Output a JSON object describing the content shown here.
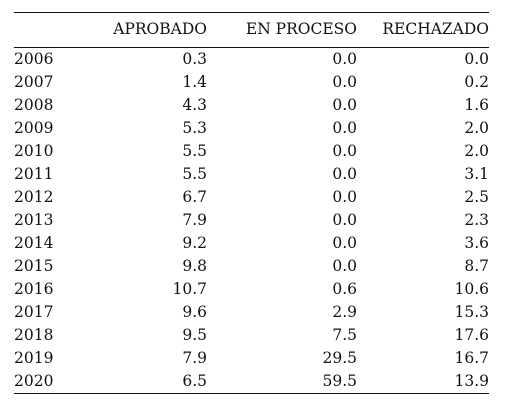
{
  "table": {
    "columns": [
      "",
      "APROBADO",
      "EN PROCESO",
      "RECHAZADO"
    ],
    "rows": [
      {
        "year": "2006",
        "aprobado": "0.3",
        "en_proceso": "0.0",
        "rechazado": "0.0"
      },
      {
        "year": "2007",
        "aprobado": "1.4",
        "en_proceso": "0.0",
        "rechazado": "0.2"
      },
      {
        "year": "2008",
        "aprobado": "4.3",
        "en_proceso": "0.0",
        "rechazado": "1.6"
      },
      {
        "year": "2009",
        "aprobado": "5.3",
        "en_proceso": "0.0",
        "rechazado": "2.0"
      },
      {
        "year": "2010",
        "aprobado": "5.5",
        "en_proceso": "0.0",
        "rechazado": "2.0"
      },
      {
        "year": "2011",
        "aprobado": "5.5",
        "en_proceso": "0.0",
        "rechazado": "3.1"
      },
      {
        "year": "2012",
        "aprobado": "6.7",
        "en_proceso": "0.0",
        "rechazado": "2.5"
      },
      {
        "year": "2013",
        "aprobado": "7.9",
        "en_proceso": "0.0",
        "rechazado": "2.3"
      },
      {
        "year": "2014",
        "aprobado": "9.2",
        "en_proceso": "0.0",
        "rechazado": "3.6"
      },
      {
        "year": "2015",
        "aprobado": "9.8",
        "en_proceso": "0.0",
        "rechazado": "8.7"
      },
      {
        "year": "2016",
        "aprobado": "10.7",
        "en_proceso": "0.6",
        "rechazado": "10.6"
      },
      {
        "year": "2017",
        "aprobado": "9.6",
        "en_proceso": "2.9",
        "rechazado": "15.3"
      },
      {
        "year": "2018",
        "aprobado": "9.5",
        "en_proceso": "7.5",
        "rechazado": "17.6"
      },
      {
        "year": "2019",
        "aprobado": "7.9",
        "en_proceso": "29.5",
        "rechazado": "16.7"
      },
      {
        "year": "2020",
        "aprobado": "6.5",
        "en_proceso": "59.5",
        "rechazado": "13.9"
      }
    ]
  }
}
